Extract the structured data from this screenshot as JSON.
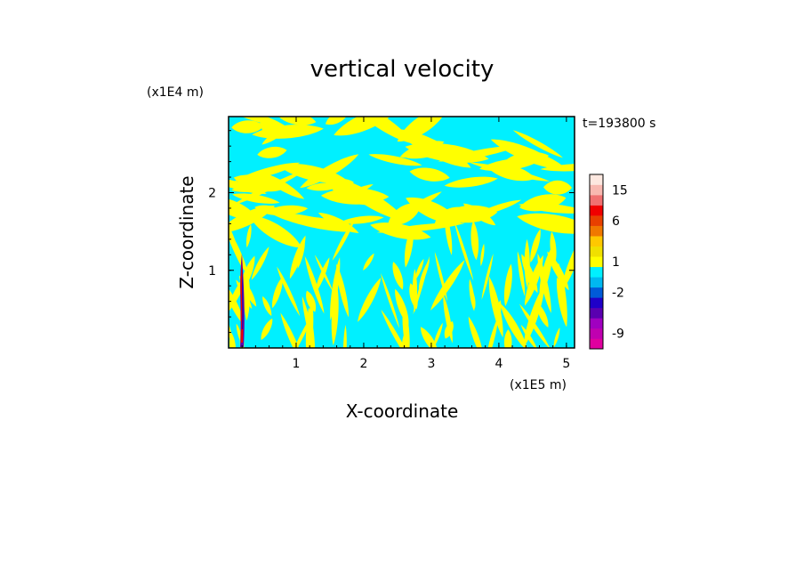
{
  "chart_data": {
    "type": "heatmap",
    "title": "vertical velocity",
    "time_label": "t=193800 s",
    "xlabel": "X-coordinate",
    "ylabel": "Z-coordinate",
    "x_unit_label": "(x1E5 m)",
    "y_unit_label": "(x1E4 m)",
    "xlim": [
      0,
      5.12
    ],
    "ylim": [
      0,
      2.98
    ],
    "x_ticks": [
      1,
      2,
      3,
      4,
      5
    ],
    "y_ticks": [
      1,
      2
    ],
    "x_tick_labels": [
      "1",
      "2",
      "3",
      "4",
      "5"
    ],
    "y_tick_labels": [
      "1",
      "2"
    ],
    "field_description": "alternating banded pattern of weak positive and negative vertical velocity with a strong narrow updraft/downdraft column near x=0.2",
    "colorbar": {
      "colors": [
        "#e0009f",
        "#c000b0",
        "#a000c0",
        "#5a00b0",
        "#1e00c8",
        "#005ad8",
        "#00b8f0",
        "#00f0ff",
        "#ffff00",
        "#f0e000",
        "#ffc800",
        "#f07800",
        "#e84000",
        "#f00000",
        "#f07070",
        "#f8b8b0",
        "#fde8e0"
      ],
      "label_values": [
        "-9",
        "-2",
        "1",
        "6",
        "15"
      ]
    }
  },
  "colors": {
    "negative_weak": "#00f0ff",
    "positive_weak": "#ffff00"
  }
}
